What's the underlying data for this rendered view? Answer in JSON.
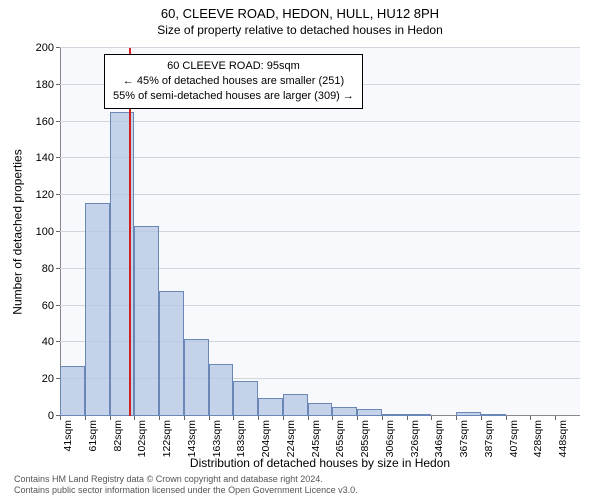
{
  "title": {
    "main": "60, CLEEVE ROAD, HEDON, HULL, HU12 8PH",
    "sub": "Size of property relative to detached houses in Hedon"
  },
  "y_axis": {
    "label": "Number of detached properties",
    "min": 0,
    "max": 200,
    "step": 20
  },
  "x_axis": {
    "label": "Distribution of detached houses by size in Hedon",
    "ticks": [
      "41sqm",
      "61sqm",
      "82sqm",
      "102sqm",
      "122sqm",
      "143sqm",
      "163sqm",
      "183sqm",
      "204sqm",
      "224sqm",
      "245sqm",
      "265sqm",
      "285sqm",
      "306sqm",
      "326sqm",
      "346sqm",
      "367sqm",
      "387sqm",
      "407sqm",
      "428sqm",
      "448sqm"
    ]
  },
  "bars": {
    "values": [
      27,
      116,
      165,
      103,
      68,
      42,
      28,
      19,
      10,
      12,
      7,
      5,
      4,
      1,
      1,
      0,
      2,
      1,
      0,
      0,
      0
    ]
  },
  "marker": {
    "x_value": 95,
    "x_min": 41,
    "x_max": 448,
    "color": "#d02020"
  },
  "info_box": {
    "line1": "60 CLEEVE ROAD: 95sqm",
    "line2": "← 45% of detached houses are smaller (251)",
    "line3": "55% of semi-detached houses are larger (309) →"
  },
  "styling": {
    "plot_bg": "#f7f9fc",
    "bar_fill": "rgba(180, 198, 228, 0.75)",
    "bar_border": "#6a87b5",
    "grid_color": "#d0d6de",
    "title_fontsize": 13,
    "sub_fontsize": 12,
    "axis_label_fontsize": 12,
    "tick_fontsize": 11
  },
  "footer": {
    "line1": "Contains HM Land Registry data © Crown copyright and database right 2024.",
    "line2": "Contains public sector information licensed under the Open Government Licence v3.0."
  }
}
